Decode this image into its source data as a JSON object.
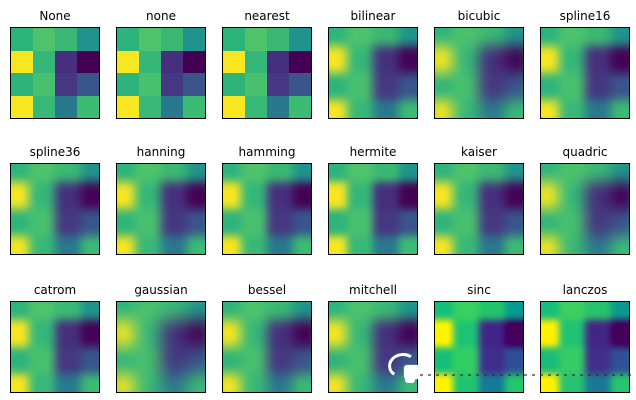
{
  "figure": {
    "methods": [
      {
        "label": "None"
      },
      {
        "label": "none"
      },
      {
        "label": "nearest"
      },
      {
        "label": "bilinear"
      },
      {
        "label": "bicubic"
      },
      {
        "label": "spline16"
      },
      {
        "label": "spline36"
      },
      {
        "label": "hanning"
      },
      {
        "label": "hamming"
      },
      {
        "label": "hermite"
      },
      {
        "label": "kaiser"
      },
      {
        "label": "quadric"
      },
      {
        "label": "catrom"
      },
      {
        "label": "gaussian"
      },
      {
        "label": "bessel"
      },
      {
        "label": "mitchell"
      },
      {
        "label": "sinc"
      },
      {
        "label": "lanczos"
      }
    ],
    "grid_colors": [
      [
        "#2db47d",
        "#4ec36b",
        "#3ab873",
        "#20938c"
      ],
      [
        "#f8e621",
        "#35b779",
        "#462f7d",
        "#440154"
      ],
      [
        "#2eb37c",
        "#48c16e",
        "#453781",
        "#39558c"
      ],
      [
        "#f8e621",
        "#38b877",
        "#2a788e",
        "#3bbb74"
      ]
    ],
    "colormap": "viridis",
    "background_color": "#ffffff",
    "title_color": "#000000"
  },
  "chart_data": {
    "type": "heatmap",
    "title": "",
    "subplot_titles": [
      "None",
      "none",
      "nearest",
      "bilinear",
      "bicubic",
      "spline16",
      "spline36",
      "hanning",
      "hamming",
      "hermite",
      "kaiser",
      "quadric",
      "catrom",
      "gaussian",
      "bessel",
      "mitchell",
      "sinc",
      "lanczos"
    ],
    "grid_rows": 3,
    "grid_cols": 6,
    "values": [
      [
        0.64,
        0.73,
        0.67,
        0.51
      ],
      [
        0.98,
        0.66,
        0.13,
        0.0
      ],
      [
        0.64,
        0.71,
        0.17,
        0.29
      ],
      [
        0.97,
        0.66,
        0.41,
        0.68
      ]
    ],
    "value_range": [
      0,
      1
    ],
    "colormap": "viridis",
    "xlabel": "",
    "ylabel": "",
    "legend": "none",
    "grid": false,
    "note": "Same 4x4 data matrix rendered in every subplot with a different interpolation method"
  },
  "overlay": {
    "cursor_present": true,
    "cursor_color": "#ffffff",
    "dotted_line_color": "#2d2d2d"
  }
}
